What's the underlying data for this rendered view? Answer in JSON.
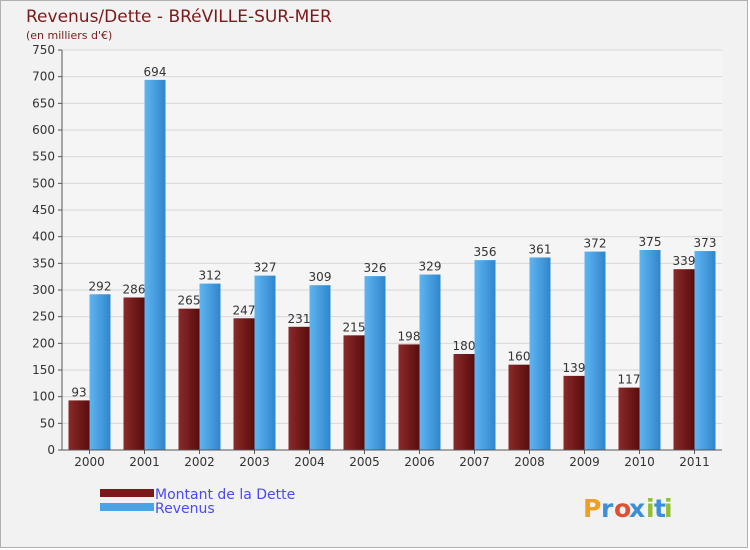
{
  "chart_data": {
    "type": "bar",
    "title": "Revenus/Dette - BRéVILLE-SUR-MER",
    "subtitle": "(en milliers d'€)",
    "categories": [
      "2000",
      "2001",
      "2002",
      "2003",
      "2004",
      "2005",
      "2006",
      "2007",
      "2008",
      "2009",
      "2010",
      "2011"
    ],
    "series": [
      {
        "name": "Montant de la Dette",
        "color": "#7a1a1a",
        "values": [
          93,
          286,
          265,
          247,
          231,
          215,
          198,
          180,
          160,
          139,
          117,
          339
        ]
      },
      {
        "name": "Revenus",
        "color": "#4aa3e6",
        "values": [
          292,
          694,
          312,
          327,
          309,
          326,
          329,
          356,
          361,
          372,
          375,
          373
        ]
      }
    ],
    "ylim": [
      0,
      750
    ],
    "yticks": [
      0,
      50,
      100,
      150,
      200,
      250,
      300,
      350,
      400,
      450,
      500,
      550,
      600,
      650,
      700,
      750
    ],
    "grid": true,
    "legend_position": "bottom-left"
  },
  "logo": {
    "text": "Proxiti",
    "letters": [
      "P",
      "r",
      "o",
      "x",
      "i",
      "t",
      "i"
    ],
    "colors": [
      "#f0a020",
      "#3a8fd8",
      "#e05030",
      "#3a8fd8",
      "#90c030",
      "#3a8fd8",
      "#90c030"
    ]
  }
}
